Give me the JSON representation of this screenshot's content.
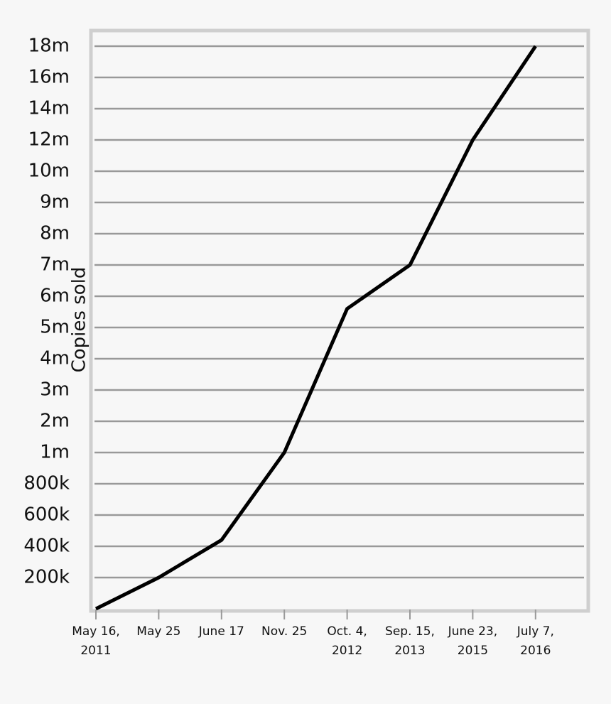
{
  "chart_data": {
    "type": "line",
    "y_label": "Copies sold",
    "categories": [
      "May 16,\n2011",
      "May 25",
      "June 17",
      "Nov. 25",
      "Oct. 4,\n2012",
      "Sep. 15,\n2013",
      "June 23,\n2015",
      "July 7,\n2016"
    ],
    "values": [
      0,
      200000,
      440000,
      1000000,
      5600000,
      7000000,
      12000000,
      18000000
    ],
    "color": "#000000",
    "ylim": [
      0,
      18000000
    ],
    "yticks": [
      {
        "value": 200000,
        "label": "200k"
      },
      {
        "value": 400000,
        "label": "400k"
      },
      {
        "value": 600000,
        "label": "600k"
      },
      {
        "value": 800000,
        "label": "800k"
      },
      {
        "value": 1000000,
        "label": "1m"
      },
      {
        "value": 2000000,
        "label": "2m"
      },
      {
        "value": 3000000,
        "label": "3m"
      },
      {
        "value": 4000000,
        "label": "4m"
      },
      {
        "value": 5000000,
        "label": "5m"
      },
      {
        "value": 6000000,
        "label": "6m"
      },
      {
        "value": 7000000,
        "label": "7m"
      },
      {
        "value": 8000000,
        "label": "8m"
      },
      {
        "value": 9000000,
        "label": "9m"
      },
      {
        "value": 10000000,
        "label": "10m"
      },
      {
        "value": 12000000,
        "label": "12m"
      },
      {
        "value": 14000000,
        "label": "14m"
      },
      {
        "value": 16000000,
        "label": "16m"
      },
      {
        "value": 18000000,
        "label": "18m"
      }
    ],
    "grid": true
  }
}
